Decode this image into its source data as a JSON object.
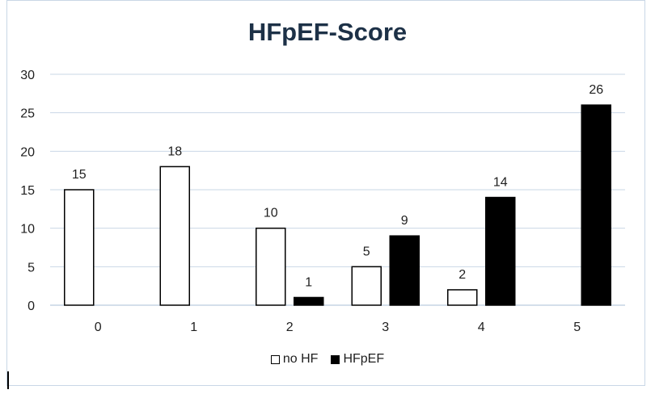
{
  "chart_data": {
    "type": "bar",
    "title": "HFpEF-Score",
    "categories": [
      "0",
      "1",
      "2",
      "3",
      "4",
      "5"
    ],
    "series": [
      {
        "name": "no HF",
        "values": [
          15,
          18,
          10,
          5,
          2,
          0
        ],
        "fill": "#ffffff",
        "stroke": "#000000"
      },
      {
        "name": "HFpEF",
        "values": [
          0,
          0,
          1,
          9,
          14,
          26
        ],
        "fill": "#000000",
        "stroke": "#000000"
      }
    ],
    "data_labels": [
      [
        "15",
        "18",
        "10",
        "5",
        "2",
        ""
      ],
      [
        "",
        "",
        "1",
        "9",
        "14",
        "26"
      ]
    ],
    "ylim": [
      0,
      30
    ],
    "yticks": [
      "0",
      "5",
      "10",
      "15",
      "20",
      "25",
      "30"
    ],
    "grid": true,
    "legend_position": "bottom",
    "colors": {
      "title": "#1d3147",
      "grid": "#c9d7e6",
      "axis": "#a9bfd6"
    }
  }
}
